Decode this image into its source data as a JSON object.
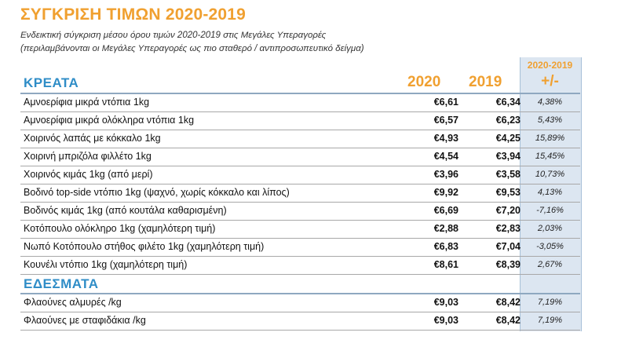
{
  "title": "ΣΥΓΚΡΙΣΗ ΤΙΜΩΝ 2020-2019",
  "subtitle_line1": "Ενδεικτική σύγκριση μέσου όρου τιμών 2020-2019 στις Μεγάλες Υπεραγορές",
  "subtitle_line2": "(περιλαμβάνονται οι Μεγάλες Υπεραγορές ως πιο σταθερό / αντιπροσωπευτικό δείγμα)",
  "header": {
    "year_2020": "2020",
    "year_2019": "2019",
    "diff_years": "2020-2019",
    "diff_sign": "+/-"
  },
  "sections": [
    {
      "name": "ΚΡΕΑΤΑ",
      "rows": [
        {
          "item": "Αμνοερίφια μικρά ντόπια 1kg",
          "p2020": "€6,61",
          "p2019": "€6,34",
          "diff": "4,38%"
        },
        {
          "item": "Αμνοερίφια μικρά ολόκληρα ντόπια 1kg",
          "p2020": "€6,57",
          "p2019": "€6,23",
          "diff": "5,43%"
        },
        {
          "item": "Χοιρινός λαπάς με κόκκαλο 1kg",
          "p2020": "€4,93",
          "p2019": "€4,25",
          "diff": "15,89%"
        },
        {
          "item": "Χοιρινή μπριζόλα φιλλέτο 1kg",
          "p2020": "€4,54",
          "p2019": "€3,94",
          "diff": "15,45%"
        },
        {
          "item": "Χοιρινός κιμάς 1kg (από μερί)",
          "p2020": "€3,96",
          "p2019": "€3,58",
          "diff": "10,73%"
        },
        {
          "item": "Βοδινό top-side ντόπιο 1kg (ψαχνό, χωρίς κόκκαλο και λίπος)",
          "p2020": "€9,92",
          "p2019": "€9,53",
          "diff": "4,13%"
        },
        {
          "item": "Βοδινός κιμάς 1kg (από κουτάλα καθαρισμένη)",
          "p2020": "€6,69",
          "p2019": "€7,20",
          "diff": "-7,16%"
        },
        {
          "item": "Κοτόπουλο ολόκληρο 1kg (χαμηλότερη τιμή)",
          "p2020": "€2,88",
          "p2019": "€2,83",
          "diff": "2,03%"
        },
        {
          "item": "Νωπό Κοτόπουλο στήθος φιλέτο 1kg (χαμηλότερη τιμή)",
          "p2020": "€6,83",
          "p2019": "€7,04",
          "diff": "-3,05%"
        },
        {
          "item": "Κουνέλι ντόπιο 1kg (χαμηλότερη τιμή)",
          "p2020": "€8,61",
          "p2019": "€8,39",
          "diff": "2,67%"
        }
      ]
    },
    {
      "name": "ΕΔΕΣΜΑΤΑ",
      "rows": [
        {
          "item": "Φλαούνες αλμυρές /kg",
          "p2020": "€9,03",
          "p2019": "€8,42",
          "diff": "7,19%"
        },
        {
          "item": "Φλαούνες με σταφιδάκια /kg",
          "p2020": "€9,03",
          "p2019": "€8,42",
          "diff": "7,19%"
        }
      ]
    }
  ]
}
